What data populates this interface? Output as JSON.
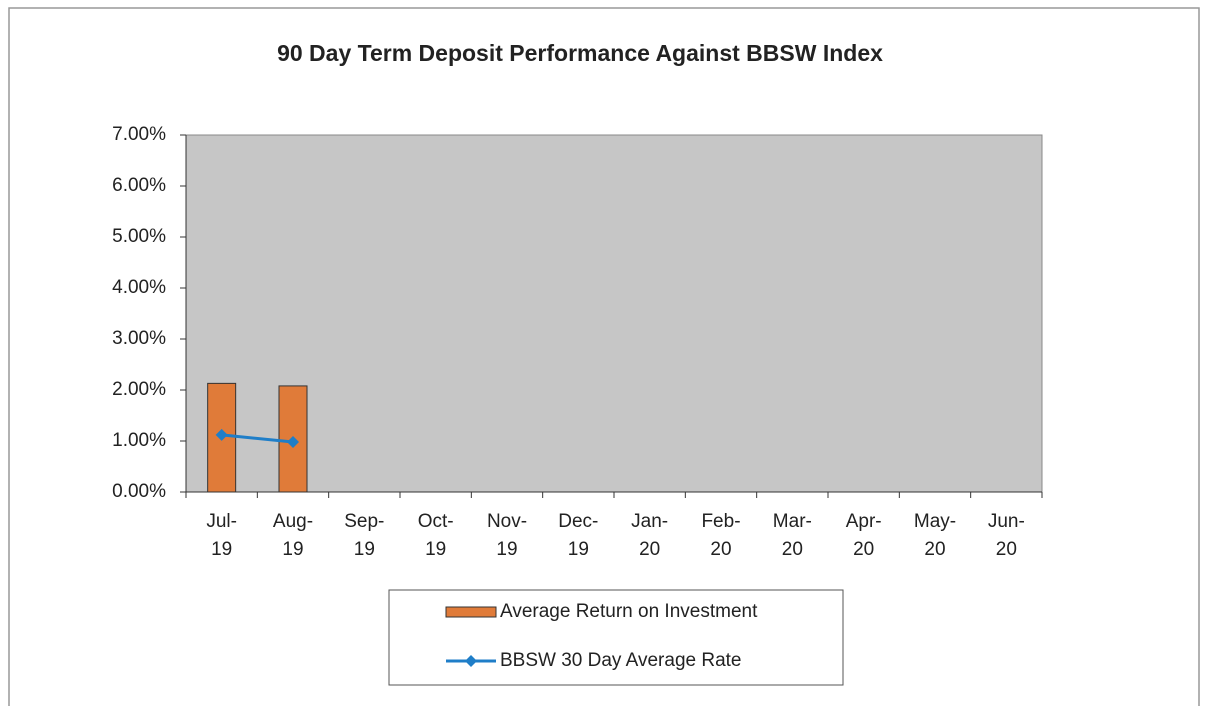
{
  "chart_data": {
    "type": "bar_line",
    "title": "90 Day Term Deposit Performance Against BBSW Index",
    "categories": [
      "Jul-19",
      "Aug-19",
      "Sep-19",
      "Oct-19",
      "Nov-19",
      "Dec-19",
      "Jan-20",
      "Feb-20",
      "Mar-20",
      "Apr-20",
      "May-20",
      "Jun-20"
    ],
    "series": [
      {
        "name": "Average Return on Investment",
        "type": "bar",
        "color": "#e07b39",
        "values": [
          2.13,
          2.08,
          null,
          null,
          null,
          null,
          null,
          null,
          null,
          null,
          null,
          null
        ]
      },
      {
        "name": "BBSW 30 Day Average Rate",
        "type": "line",
        "color": "#1f7ec8",
        "values": [
          1.12,
          0.98,
          null,
          null,
          null,
          null,
          null,
          null,
          null,
          null,
          null,
          null
        ]
      }
    ],
    "ylim": [
      0,
      7
    ],
    "yticks": [
      {
        "value": 0,
        "label": "0.00%"
      },
      {
        "value": 1,
        "label": "1.00%"
      },
      {
        "value": 2,
        "label": "2.00%"
      },
      {
        "value": 3,
        "label": "3.00%"
      },
      {
        "value": 4,
        "label": "4.00%"
      },
      {
        "value": 5,
        "label": "5.00%"
      },
      {
        "value": 6,
        "label": "6.00%"
      },
      {
        "value": 7,
        "label": "7.00%"
      }
    ],
    "legend": "bottom"
  }
}
